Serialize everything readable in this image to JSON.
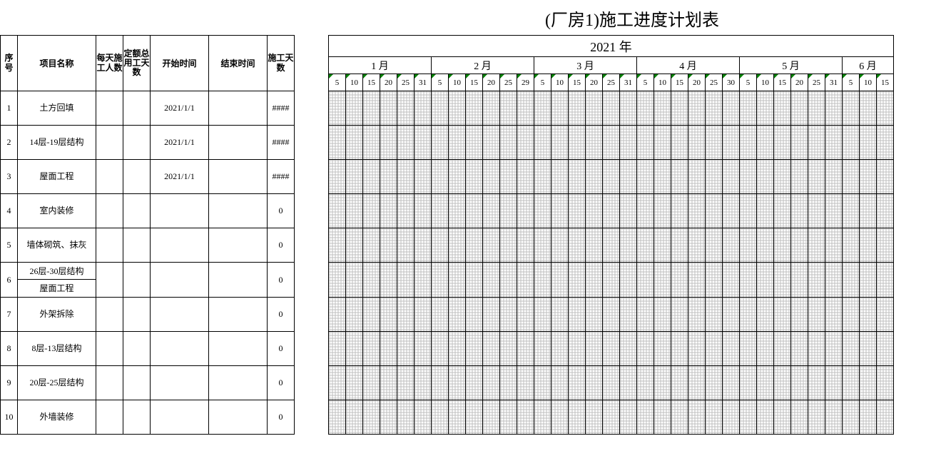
{
  "title": "(厂房1)施工进度计划表",
  "year_label": "2021 年",
  "columns": {
    "seq": "序号",
    "name": "项目名称",
    "people": "每天施工人数",
    "quota": "定额总用工天数",
    "start": "开始时间",
    "end": "结束时间",
    "days": "施工天数"
  },
  "months": [
    {
      "label": "1 月",
      "days": [
        "5",
        "10",
        "15",
        "20",
        "25",
        "31"
      ]
    },
    {
      "label": "2 月",
      "days": [
        "5",
        "10",
        "15",
        "20",
        "25",
        "29"
      ]
    },
    {
      "label": "3 月",
      "days": [
        "5",
        "10",
        "15",
        "20",
        "25",
        "31"
      ]
    },
    {
      "label": "4 月",
      "days": [
        "5",
        "10",
        "15",
        "20",
        "25",
        "30"
      ]
    },
    {
      "label": "5 月",
      "days": [
        "5",
        "10",
        "15",
        "20",
        "25",
        "31"
      ]
    },
    {
      "label": "6 月",
      "days": [
        "5",
        "10",
        "15"
      ]
    }
  ],
  "rows": [
    {
      "seq": "1",
      "name": "土方回填",
      "people": "",
      "quota": "",
      "start": "2021/1/1",
      "end": "",
      "days": "####"
    },
    {
      "seq": "2",
      "name": "14层-19层结构",
      "people": "",
      "quota": "",
      "start": "2021/1/1",
      "end": "",
      "days": "####"
    },
    {
      "seq": "3",
      "name": "屋面工程",
      "people": "",
      "quota": "",
      "start": "2021/1/1",
      "end": "",
      "days": "####"
    },
    {
      "seq": "4",
      "name": "室内装修",
      "people": "",
      "quota": "",
      "start": "",
      "end": "",
      "days": "0"
    },
    {
      "seq": "5",
      "name": "墙体砌筑、抹灰",
      "people": "",
      "quota": "",
      "start": "",
      "end": "",
      "days": "0"
    },
    {
      "seq": "6",
      "name": "26层-30层结构",
      "name2": "屋面工程",
      "people": "",
      "quota": "",
      "start": "",
      "end": "",
      "days": "0"
    },
    {
      "seq": "7",
      "name": "外架拆除",
      "people": "",
      "quota": "",
      "start": "",
      "end": "",
      "days": "0"
    },
    {
      "seq": "8",
      "name": "8层-13层结构",
      "people": "",
      "quota": "",
      "start": "",
      "end": "",
      "days": "0"
    },
    {
      "seq": "9",
      "name": "20层-25层结构",
      "people": "",
      "quota": "",
      "start": "",
      "end": "",
      "days": "0"
    },
    {
      "seq": "10",
      "name": "外墙装修",
      "people": "",
      "quota": "",
      "start": "",
      "end": "",
      "days": "0"
    }
  ],
  "colors": {
    "border": "#000000",
    "grid_dot": "#bfbfbf",
    "day_marker": "#008000",
    "background": "#ffffff"
  },
  "fonts": {
    "title_size": 24,
    "year_size": 18,
    "month_size": 14,
    "body_size": 12,
    "day_size": 11
  }
}
